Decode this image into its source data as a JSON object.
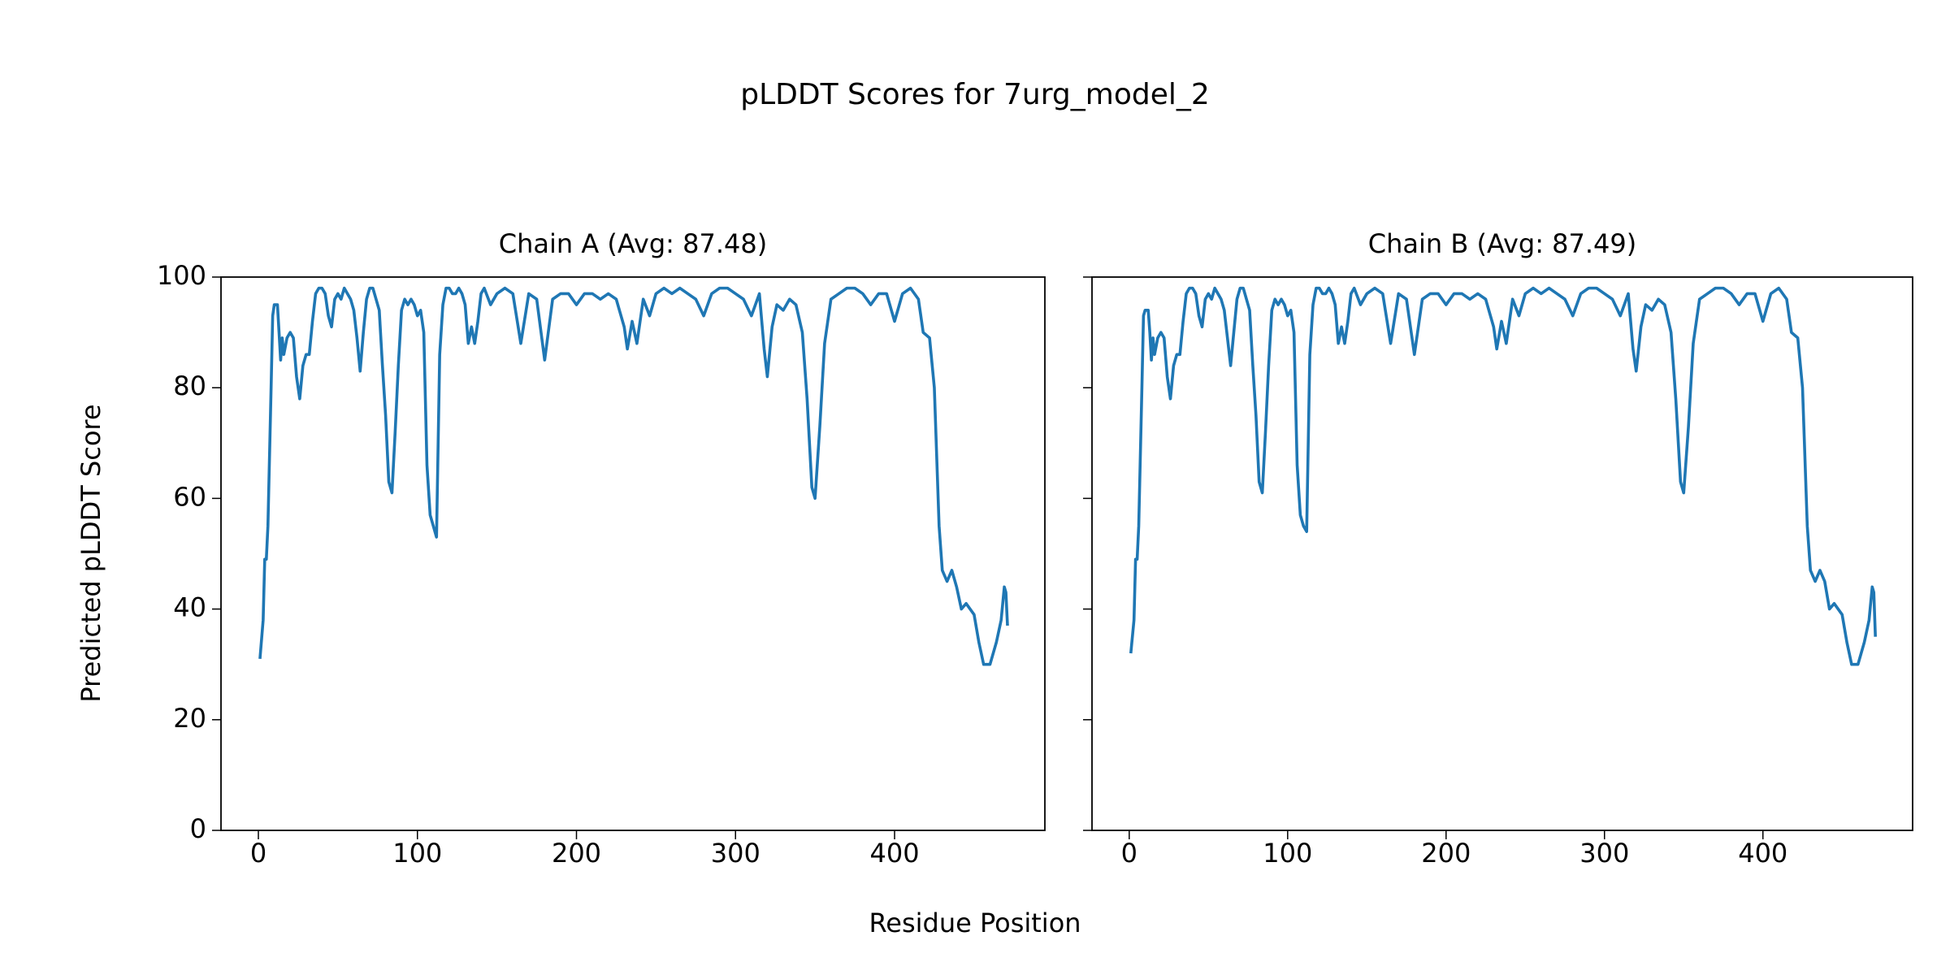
{
  "title": "pLDDT Scores for 7urg_model_2",
  "xlabel": "Residue Position",
  "ylabel": "Predicted pLDDT Score",
  "chart_data": [
    {
      "type": "line",
      "title": "Chain A (Avg: 87.48)",
      "color": "#1f77b4",
      "xlim": [
        -23.5,
        494.5
      ],
      "ylim": [
        0,
        100
      ],
      "xticks": [
        0,
        100,
        200,
        300,
        400
      ],
      "yticks": [
        0,
        20,
        40,
        60,
        80,
        100
      ],
      "x": [
        1,
        3,
        4,
        5,
        6,
        8,
        9,
        10,
        12,
        13,
        14,
        15,
        16,
        18,
        20,
        22,
        24,
        26,
        28,
        30,
        32,
        34,
        36,
        38,
        40,
        42,
        44,
        46,
        48,
        50,
        52,
        54,
        56,
        58,
        60,
        62,
        64,
        66,
        68,
        70,
        72,
        74,
        76,
        78,
        80,
        82,
        84,
        86,
        88,
        90,
        92,
        94,
        96,
        98,
        100,
        102,
        104,
        106,
        108,
        110,
        112,
        114,
        116,
        118,
        120,
        122,
        124,
        126,
        128,
        130,
        132,
        134,
        136,
        138,
        140,
        142,
        146,
        150,
        155,
        160,
        165,
        170,
        175,
        180,
        185,
        190,
        195,
        200,
        205,
        210,
        215,
        220,
        225,
        230,
        232,
        235,
        238,
        242,
        246,
        250,
        255,
        260,
        265,
        270,
        275,
        280,
        285,
        290,
        295,
        300,
        305,
        310,
        315,
        318,
        320,
        323,
        326,
        330,
        334,
        338,
        342,
        345,
        348,
        350,
        353,
        356,
        360,
        365,
        370,
        375,
        380,
        385,
        390,
        395,
        400,
        405,
        410,
        415,
        418,
        422,
        425,
        428,
        430,
        433,
        436,
        439,
        442,
        445,
        450,
        453,
        456,
        460,
        464,
        467,
        469,
        470,
        471
      ],
      "values": [
        31,
        38,
        49,
        49,
        55,
        80,
        93,
        95,
        95,
        90,
        85,
        89,
        86,
        89,
        90,
        89,
        82,
        78,
        84,
        86,
        86,
        92,
        97,
        98,
        98,
        97,
        93,
        91,
        96,
        97,
        96,
        98,
        97,
        96,
        94,
        89,
        83,
        90,
        96,
        98,
        98,
        96,
        94,
        84,
        75,
        63,
        61,
        72,
        84,
        94,
        96,
        95,
        96,
        95,
        93,
        94,
        90,
        66,
        57,
        55,
        53,
        86,
        95,
        98,
        98,
        97,
        97,
        98,
        97,
        95,
        88,
        91,
        88,
        92,
        97,
        98,
        95,
        97,
        98,
        97,
        88,
        97,
        96,
        85,
        96,
        97,
        97,
        95,
        97,
        97,
        96,
        97,
        96,
        91,
        87,
        92,
        88,
        96,
        93,
        97,
        98,
        97,
        98,
        97,
        96,
        93,
        97,
        98,
        98,
        97,
        96,
        93,
        97,
        87,
        82,
        91,
        95,
        94,
        96,
        95,
        90,
        78,
        62,
        60,
        73,
        88,
        96,
        97,
        98,
        98,
        97,
        95,
        97,
        97,
        92,
        97,
        98,
        96,
        90,
        89,
        80,
        55,
        47,
        45,
        47,
        44,
        40,
        41,
        39,
        34,
        30,
        30,
        34,
        38,
        44,
        43,
        37
      ]
    },
    {
      "type": "line",
      "title": "Chain B (Avg: 87.49)",
      "color": "#1f77b4",
      "sharey": true,
      "xlim": [
        -23.5,
        494.5
      ],
      "ylim": [
        0,
        100
      ],
      "xticks": [
        0,
        100,
        200,
        300,
        400
      ],
      "yticks": [
        0,
        20,
        40,
        60,
        80,
        100
      ],
      "x": [
        1,
        3,
        4,
        5,
        6,
        8,
        9,
        10,
        12,
        13,
        14,
        15,
        16,
        18,
        20,
        22,
        24,
        26,
        28,
        30,
        32,
        34,
        36,
        38,
        40,
        42,
        44,
        46,
        48,
        50,
        52,
        54,
        56,
        58,
        60,
        62,
        64,
        66,
        68,
        70,
        72,
        74,
        76,
        78,
        80,
        82,
        84,
        86,
        88,
        90,
        92,
        94,
        96,
        98,
        100,
        102,
        104,
        106,
        108,
        110,
        112,
        114,
        116,
        118,
        120,
        122,
        124,
        126,
        128,
        130,
        132,
        134,
        136,
        138,
        140,
        142,
        146,
        150,
        155,
        160,
        165,
        170,
        175,
        180,
        185,
        190,
        195,
        200,
        205,
        210,
        215,
        220,
        225,
        230,
        232,
        235,
        238,
        242,
        246,
        250,
        255,
        260,
        265,
        270,
        275,
        280,
        285,
        290,
        295,
        300,
        305,
        310,
        315,
        318,
        320,
        323,
        326,
        330,
        334,
        338,
        342,
        345,
        348,
        350,
        353,
        356,
        360,
        365,
        370,
        375,
        380,
        385,
        390,
        395,
        400,
        405,
        410,
        415,
        418,
        422,
        425,
        428,
        430,
        433,
        436,
        439,
        442,
        445,
        450,
        453,
        456,
        460,
        464,
        467,
        469,
        470,
        471
      ],
      "values": [
        32,
        38,
        49,
        49,
        55,
        80,
        93,
        94,
        94,
        90,
        85,
        89,
        86,
        89,
        90,
        89,
        82,
        78,
        84,
        86,
        86,
        92,
        97,
        98,
        98,
        97,
        93,
        91,
        96,
        97,
        96,
        98,
        97,
        96,
        94,
        89,
        84,
        90,
        96,
        98,
        98,
        96,
        94,
        84,
        75,
        63,
        61,
        72,
        84,
        94,
        96,
        95,
        96,
        95,
        93,
        94,
        90,
        66,
        57,
        55,
        54,
        86,
        95,
        98,
        98,
        97,
        97,
        98,
        97,
        95,
        88,
        91,
        88,
        92,
        97,
        98,
        95,
        97,
        98,
        97,
        88,
        97,
        96,
        86,
        96,
        97,
        97,
        95,
        97,
        97,
        96,
        97,
        96,
        91,
        87,
        92,
        88,
        96,
        93,
        97,
        98,
        97,
        98,
        97,
        96,
        93,
        97,
        98,
        98,
        97,
        96,
        93,
        97,
        87,
        83,
        91,
        95,
        94,
        96,
        95,
        90,
        78,
        63,
        61,
        73,
        88,
        96,
        97,
        98,
        98,
        97,
        95,
        97,
        97,
        92,
        97,
        98,
        96,
        90,
        89,
        80,
        55,
        47,
        45,
        47,
        45,
        40,
        41,
        39,
        34,
        30,
        30,
        34,
        38,
        44,
        43,
        35
      ]
    }
  ]
}
